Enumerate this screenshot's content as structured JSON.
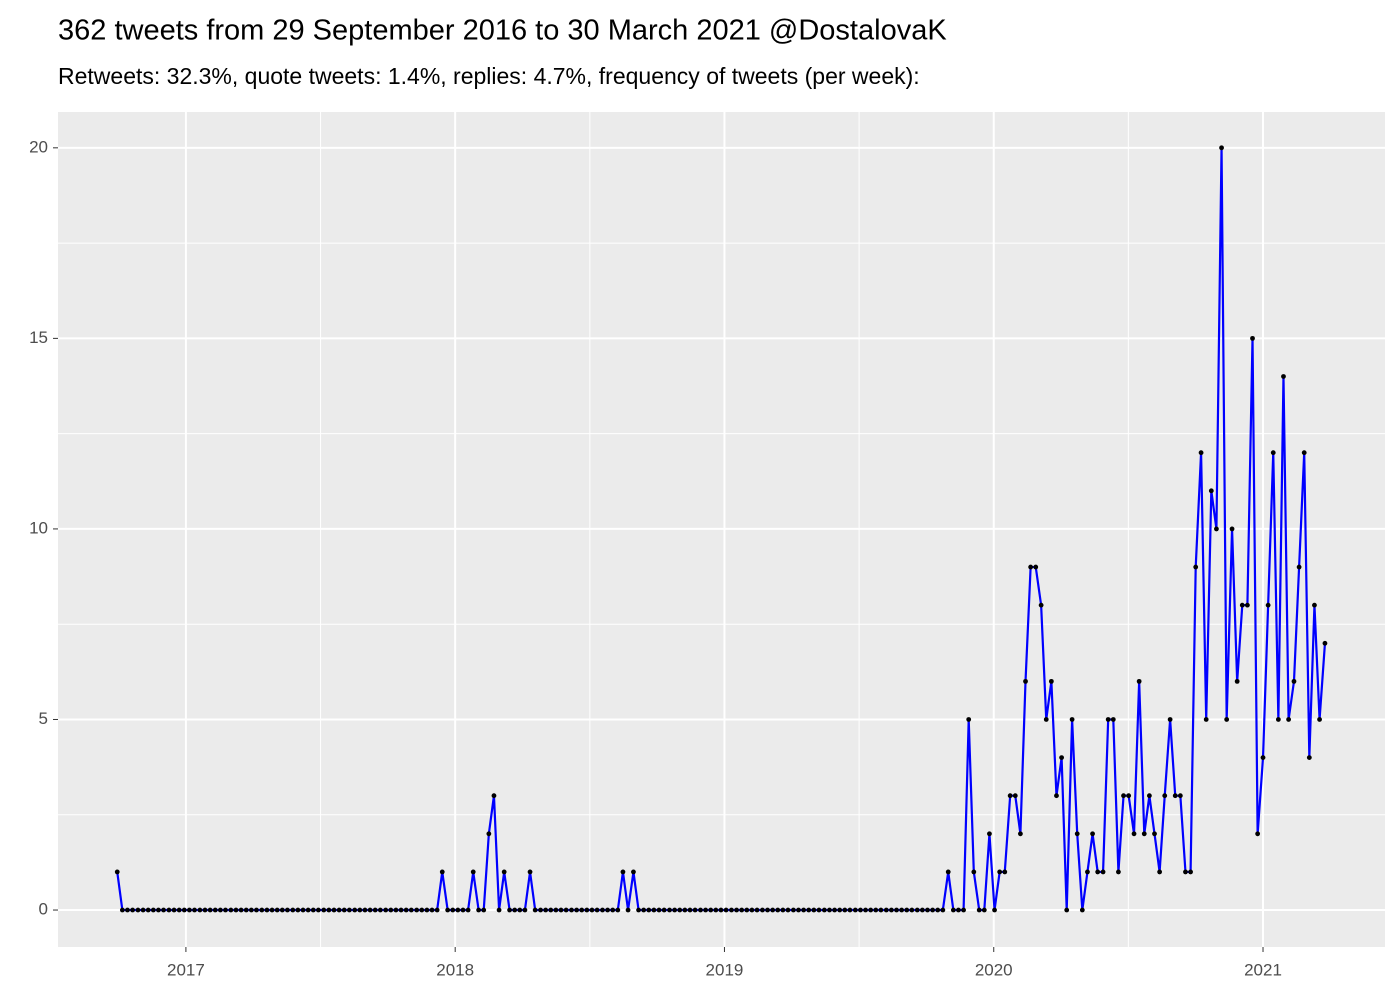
{
  "chart_data": {
    "type": "line",
    "title": "362 tweets from 29 September 2016 to 30 March 2021 @DostalovaK",
    "subtitle": "Retweets: 32.3%, quote tweets: 1.4%, replies: 4.7%, frequency of tweets (per week):",
    "x": [
      2016.745,
      2016.764,
      2016.783,
      2016.802,
      2016.822,
      2016.841,
      2016.86,
      2016.879,
      2016.898,
      2016.917,
      2016.937,
      2016.956,
      2016.975,
      2016.994,
      2017.013,
      2017.032,
      2017.052,
      2017.071,
      2017.09,
      2017.109,
      2017.128,
      2017.147,
      2017.167,
      2017.186,
      2017.205,
      2017.224,
      2017.243,
      2017.262,
      2017.282,
      2017.301,
      2017.32,
      2017.339,
      2017.358,
      2017.377,
      2017.397,
      2017.416,
      2017.435,
      2017.454,
      2017.473,
      2017.492,
      2017.512,
      2017.531,
      2017.55,
      2017.569,
      2017.588,
      2017.607,
      2017.627,
      2017.646,
      2017.665,
      2017.684,
      2017.703,
      2017.722,
      2017.742,
      2017.761,
      2017.78,
      2017.799,
      2017.818,
      2017.837,
      2017.857,
      2017.876,
      2017.895,
      2017.914,
      2017.933,
      2017.952,
      2017.972,
      2017.991,
      2018.01,
      2018.029,
      2018.048,
      2018.067,
      2018.087,
      2018.106,
      2018.125,
      2018.144,
      2018.163,
      2018.182,
      2018.202,
      2018.221,
      2018.24,
      2018.259,
      2018.278,
      2018.297,
      2018.317,
      2018.336,
      2018.355,
      2018.374,
      2018.393,
      2018.412,
      2018.432,
      2018.451,
      2018.47,
      2018.489,
      2018.508,
      2018.527,
      2018.547,
      2018.566,
      2018.585,
      2018.604,
      2018.623,
      2018.642,
      2018.662,
      2018.681,
      2018.7,
      2018.719,
      2018.738,
      2018.757,
      2018.776,
      2018.796,
      2018.815,
      2018.834,
      2018.853,
      2018.872,
      2018.891,
      2018.911,
      2018.93,
      2018.949,
      2018.968,
      2018.987,
      2019.006,
      2019.026,
      2019.045,
      2019.064,
      2019.083,
      2019.102,
      2019.121,
      2019.141,
      2019.16,
      2019.179,
      2019.198,
      2019.217,
      2019.236,
      2019.256,
      2019.275,
      2019.294,
      2019.313,
      2019.332,
      2019.351,
      2019.371,
      2019.39,
      2019.409,
      2019.428,
      2019.447,
      2019.466,
      2019.486,
      2019.505,
      2019.524,
      2019.543,
      2019.562,
      2019.581,
      2019.601,
      2019.62,
      2019.639,
      2019.658,
      2019.677,
      2019.696,
      2019.716,
      2019.735,
      2019.754,
      2019.773,
      2019.792,
      2019.811,
      2019.831,
      2019.85,
      2019.869,
      2019.888,
      2019.907,
      2019.926,
      2019.946,
      2019.965,
      2019.984,
      2020.003,
      2020.022,
      2020.041,
      2020.061,
      2020.08,
      2020.099,
      2020.118,
      2020.137,
      2020.156,
      2020.176,
      2020.195,
      2020.214,
      2020.233,
      2020.252,
      2020.271,
      2020.291,
      2020.31,
      2020.329,
      2020.348,
      2020.367,
      2020.386,
      2020.406,
      2020.425,
      2020.444,
      2020.463,
      2020.482,
      2020.501,
      2020.521,
      2020.54,
      2020.559,
      2020.578,
      2020.597,
      2020.616,
      2020.635,
      2020.655,
      2020.674,
      2020.693,
      2020.712,
      2020.731,
      2020.75,
      2020.77,
      2020.789,
      2020.808,
      2020.827,
      2020.846,
      2020.865,
      2020.885,
      2020.904,
      2020.923,
      2020.942,
      2020.961,
      2020.98,
      2021.0,
      2021.019,
      2021.038,
      2021.057,
      2021.076,
      2021.095,
      2021.115,
      2021.134,
      2021.153,
      2021.172,
      2021.191,
      2021.21,
      2021.23
    ],
    "values": [
      1,
      0,
      0,
      0,
      0,
      0,
      0,
      0,
      0,
      0,
      0,
      0,
      0,
      0,
      0,
      0,
      0,
      0,
      0,
      0,
      0,
      0,
      0,
      0,
      0,
      0,
      0,
      0,
      0,
      0,
      0,
      0,
      0,
      0,
      0,
      0,
      0,
      0,
      0,
      0,
      0,
      0,
      0,
      0,
      0,
      0,
      0,
      0,
      0,
      0,
      0,
      0,
      0,
      0,
      0,
      0,
      0,
      0,
      0,
      0,
      0,
      0,
      0,
      1,
      0,
      0,
      0,
      0,
      0,
      1,
      0,
      0,
      2,
      3,
      0,
      1,
      0,
      0,
      0,
      0,
      1,
      0,
      0,
      0,
      0,
      0,
      0,
      0,
      0,
      0,
      0,
      0,
      0,
      0,
      0,
      0,
      0,
      0,
      1,
      0,
      1,
      0,
      0,
      0,
      0,
      0,
      0,
      0,
      0,
      0,
      0,
      0,
      0,
      0,
      0,
      0,
      0,
      0,
      0,
      0,
      0,
      0,
      0,
      0,
      0,
      0,
      0,
      0,
      0,
      0,
      0,
      0,
      0,
      0,
      0,
      0,
      0,
      0,
      0,
      0,
      0,
      0,
      0,
      0,
      0,
      0,
      0,
      0,
      0,
      0,
      0,
      0,
      0,
      0,
      0,
      0,
      0,
      0,
      0,
      0,
      0,
      1,
      0,
      0,
      0,
      5,
      1,
      0,
      0,
      2,
      0,
      1,
      1,
      3,
      3,
      2,
      6,
      9,
      9,
      8,
      5,
      6,
      3,
      4,
      0,
      5,
      2,
      0,
      1,
      2,
      1,
      1,
      5,
      5,
      1,
      3,
      3,
      2,
      6,
      2,
      3,
      2,
      1,
      3,
      5,
      3,
      3,
      1,
      1,
      9,
      12,
      5,
      11,
      10,
      20,
      5,
      10,
      6,
      8,
      8,
      15,
      2,
      4,
      8,
      12,
      5,
      14,
      5,
      6,
      9,
      12,
      4,
      8,
      5,
      7
    ],
    "color": "#0000ff",
    "point_color": "#000000",
    "xlim": [
      2016.525,
      2021.453
    ],
    "xticks": [
      2017,
      2018,
      2019,
      2020,
      2021
    ],
    "ylim": [
      -0.97,
      20.94
    ],
    "yticks": [
      0,
      5,
      10,
      15,
      20
    ],
    "grid": true
  }
}
